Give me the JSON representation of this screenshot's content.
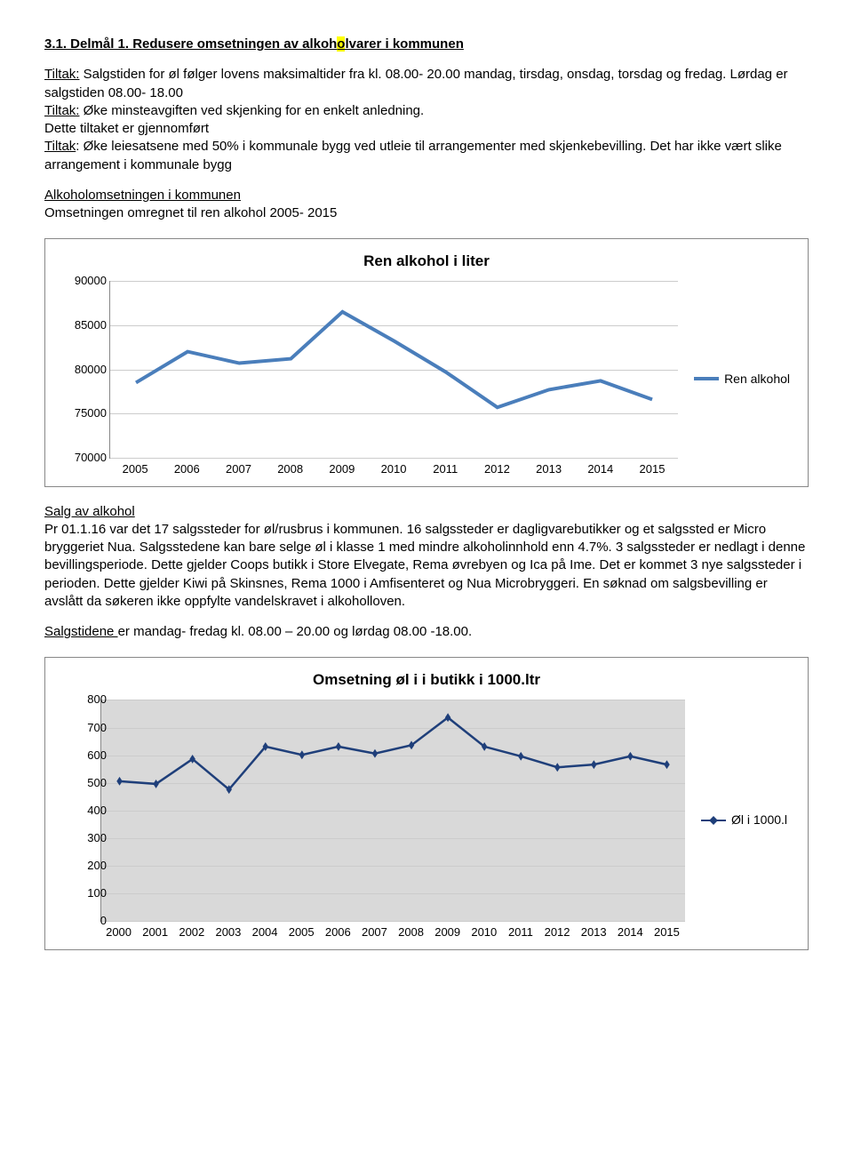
{
  "heading_pre": "3.1. Delmål 1. Redusere omsetningen av alkoh",
  "heading_hl": "o",
  "heading_post": "lvarer i kommunen",
  "p1_u": "Tiltak:",
  "p1_rest": " Salgstiden for øl følger lovens maksimaltider fra kl. 08.00- 20.00 mandag, tirsdag, onsdag, torsdag og fredag. Lørdag er salgstiden 08.00- 18.00",
  "p2_u": "Tiltak:",
  "p2_rest": " Øke minsteavgiften ved skjenking for en enkelt anledning.",
  "p3": "Dette tiltaket er gjennomført",
  "p4_u": "Tiltak",
  "p4_rest": ": Øke leiesatsene med 50% i kommunale bygg ved utleie til arrangementer med skjenkebevilling. Det har ikke vært slike arrangement i kommunale bygg",
  "sub1_u": "Alkoholomsetningen i kommunen",
  "sub1_line2": "Omsetningen omregnet til ren alkohol 2005- 2015",
  "chart1": {
    "title": "Ren alkohol i liter",
    "legend_label": "Ren alkohol",
    "series_color": "#4a7ebb",
    "ylim": [
      70000,
      90000
    ],
    "yticks": [
      70000,
      75000,
      80000,
      85000,
      90000
    ],
    "xcats": [
      "2005",
      "2006",
      "2007",
      "2008",
      "2009",
      "2010",
      "2011",
      "2012",
      "2013",
      "2014",
      "2015"
    ],
    "values": [
      78500,
      82000,
      80700,
      81200,
      86500,
      83200,
      79700,
      75700,
      77700,
      78700,
      76600
    ]
  },
  "salg_u": "Salg av alkohol",
  "salg_p": "Pr 01.1.16 var det 17 salgssteder for øl/rusbrus i kommunen. 16 salgssteder er dagligvarebutikker og et salgssted er Micro bryggeriet Nua. Salgsstedene kan bare selge øl i klasse 1 med mindre alkoholinnhold enn 4.7%. 3 salgssteder er nedlagt i denne bevillingsperiode. Dette gjelder Coops butikk i Store Elvegate, Rema øvrebyen og Ica på Ime. Det er kommet 3 nye salgssteder i perioden. Dette gjelder Kiwi på Skinsnes, Rema 1000 i Amfisenteret og Nua Microbryggeri. En søknad om salgsbevilling er avslått da søkeren ikke oppfylte vandelskravet i alkoholloven.",
  "salgstid_u": "Salgstidene ",
  "salgstid_rest": "er mandag- fredag kl. 08.00 – 20.00 og lørdag 08.00 -18.00.",
  "chart2": {
    "title": "Omsetning øl i  i butikk i 1000.ltr",
    "legend_label": "Øl i 1000.l",
    "series_color": "#1f3f7a",
    "marker_color": "#1f3f7a",
    "bg_color": "#d9d9d9",
    "ylim": [
      0,
      800
    ],
    "yticks": [
      0,
      100,
      200,
      300,
      400,
      500,
      600,
      700,
      800
    ],
    "xcats": [
      "2000",
      "2001",
      "2002",
      "2003",
      "2004",
      "2005",
      "2006",
      "2007",
      "2008",
      "2009",
      "2010",
      "2011",
      "2012",
      "2013",
      "2014",
      "2015"
    ],
    "values": [
      505,
      495,
      585,
      475,
      630,
      600,
      630,
      605,
      635,
      735,
      630,
      595,
      555,
      565,
      595,
      565
    ]
  }
}
